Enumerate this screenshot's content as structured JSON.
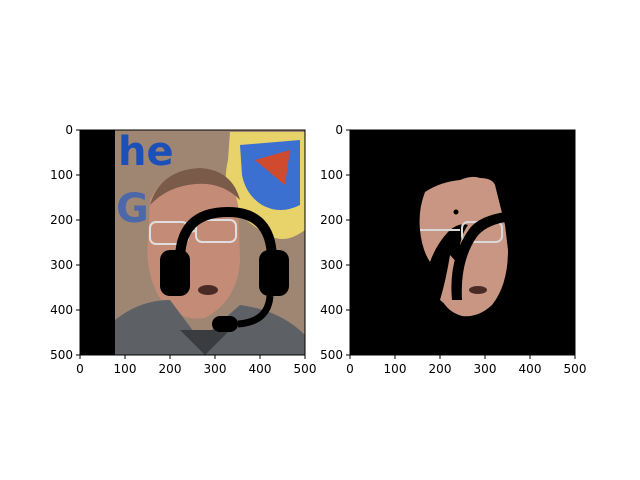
{
  "chart_data": [
    {
      "type": "image",
      "panel": "left",
      "xlim": [
        0,
        500
      ],
      "ylim": [
        500,
        0
      ],
      "xticks": [
        0,
        100,
        200,
        300,
        400,
        500
      ],
      "yticks": [
        0,
        100,
        200,
        300,
        400,
        500
      ],
      "xtick_labels": [
        "0",
        "100",
        "200",
        "300",
        "400",
        "500"
      ],
      "ytick_labels": [
        "0",
        "100",
        "200",
        "300",
        "400",
        "500"
      ],
      "content_icons": [
        "face-photo",
        "headset-icon"
      ],
      "colors": {
        "background_strip": "#000000",
        "wall": "#a08a78",
        "logo_blue": "#1d4fb8",
        "logo_yellow": "#e8d26a"
      }
    },
    {
      "type": "image",
      "panel": "right",
      "xlim": [
        0,
        500
      ],
      "ylim": [
        500,
        0
      ],
      "xticks": [
        0,
        100,
        200,
        300,
        400,
        500
      ],
      "yticks": [
        0,
        100,
        200,
        300,
        400,
        500
      ],
      "xtick_labels": [
        "0",
        "100",
        "200",
        "300",
        "400",
        "500"
      ],
      "ytick_labels": [
        "0",
        "100",
        "200",
        "300",
        "400",
        "500"
      ],
      "content_icons": [
        "segmented-face-mask"
      ],
      "colors": {
        "background": "#000000",
        "skin": "#c89682"
      }
    }
  ]
}
